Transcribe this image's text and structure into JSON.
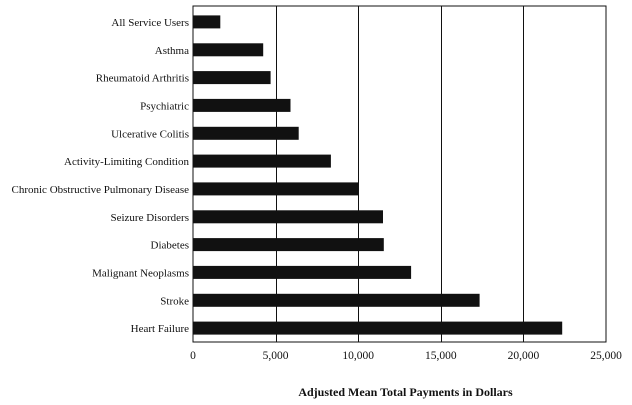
{
  "chart_data": {
    "type": "bar",
    "orientation": "horizontal",
    "categories": [
      "All Service Users",
      "Asthma",
      "Rheumatoid Arthritis",
      "Psychiatric",
      "Ulcerative Colitis",
      "Activity-Limiting Condition",
      "Chronic Obstructive Pulmonary Disease",
      "Seizure Disorders",
      "Diabetes",
      "Malignant Neoplasms",
      "Stroke",
      "Heart Failure"
    ],
    "values": [
      1650,
      4250,
      4700,
      5900,
      6400,
      8350,
      10050,
      11500,
      11550,
      13200,
      17350,
      22350
    ],
    "title": "",
    "xlabel": "Adjusted Mean Total Payments in Dollars",
    "ylabel": "",
    "xlim": [
      0,
      25000
    ],
    "xticks": [
      0,
      5000,
      10000,
      15000,
      20000,
      25000
    ],
    "xtick_labels": [
      "0",
      "5,000",
      "10,000",
      "15,000",
      "20,000",
      "25,000"
    ],
    "grid": "vertical",
    "legend": "none",
    "bar_color": "#111111"
  }
}
